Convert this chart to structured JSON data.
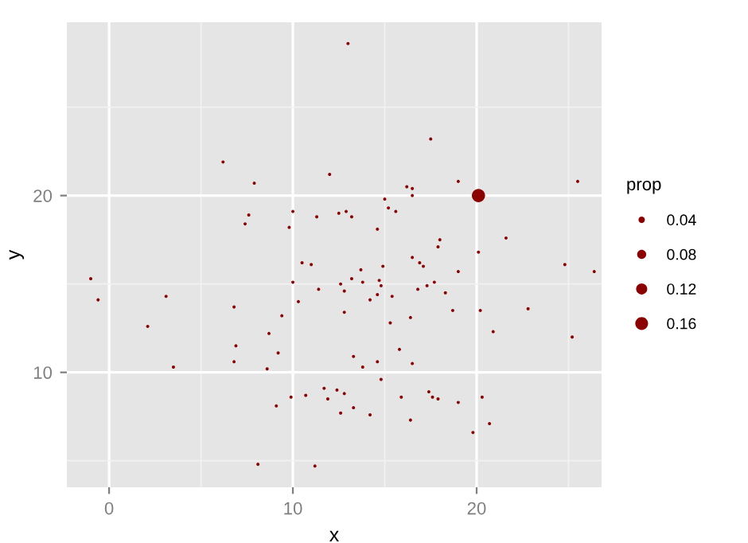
{
  "chart_data": {
    "type": "bubble",
    "xlabel": "x",
    "ylabel": "y",
    "legend_title": "prop",
    "xlim": [
      -2.3,
      26.8
    ],
    "ylim": [
      3.5,
      29.8
    ],
    "xticks": [
      0,
      10,
      20
    ],
    "yticks": [
      10,
      20
    ],
    "grid": true,
    "marker": "circle",
    "size_legend": [
      0.04,
      0.08,
      0.12,
      0.16
    ],
    "series": [
      {
        "color": "#8b0000",
        "x": [
          13.0,
          6.2,
          7.9,
          7.6,
          7.4,
          10.0,
          9.8,
          11.3,
          12.5,
          12.9,
          10.5,
          11.0,
          12.0,
          17.5,
          16.2,
          16.5,
          16.5,
          19.0,
          20.1,
          25.5,
          15.0,
          15.2,
          15.6,
          13.2,
          14.6,
          18.0,
          17.9,
          21.6,
          20.1,
          24.8,
          16.5,
          16.9,
          17.1,
          14.9,
          13.7,
          -1.0,
          -0.6,
          3.1,
          2.1,
          3.5,
          6.8,
          6.9,
          6.8,
          8.6,
          8.7,
          9.2,
          9.4,
          9.1,
          9.9,
          10.7,
          8.1,
          11.2,
          10.0,
          10.3,
          11.4,
          12.6,
          12.8,
          12.8,
          11.7,
          11.9,
          12.4,
          12.8,
          12.6,
          13.2,
          13.8,
          14.7,
          14.8,
          14.6,
          14.2,
          15.4,
          16.8,
          17.3,
          17.7,
          18.3,
          19.0,
          26.4,
          15.3,
          16.4,
          18.7,
          20.2,
          22.8,
          20.9,
          25.2,
          13.3,
          13.8,
          14.6,
          15.8,
          16.5,
          14.8,
          13.3,
          14.2,
          15.9,
          16.4,
          17.4,
          17.6,
          17.9,
          19.0,
          20.3,
          20.7,
          19.8
        ],
        "values": [
          28.6,
          21.9,
          20.7,
          18.9,
          18.4,
          19.1,
          18.2,
          18.8,
          19.0,
          19.1,
          16.2,
          16.1,
          21.2,
          23.2,
          20.5,
          20.4,
          20.0,
          20.8,
          20.0,
          20.8,
          19.8,
          19.3,
          19.1,
          18.8,
          18.1,
          17.5,
          17.1,
          17.6,
          16.8,
          16.1,
          16.5,
          16.2,
          16.0,
          16.0,
          15.8,
          15.3,
          14.1,
          14.3,
          12.6,
          10.3,
          13.7,
          11.5,
          10.6,
          10.2,
          12.2,
          11.1,
          13.2,
          8.1,
          8.6,
          8.7,
          4.8,
          4.7,
          15.1,
          14.0,
          14.7,
          15.0,
          14.6,
          13.4,
          9.1,
          8.5,
          9.0,
          8.8,
          7.7,
          15.3,
          15.1,
          15.2,
          14.9,
          14.4,
          14.1,
          14.3,
          14.7,
          14.9,
          15.1,
          14.5,
          15.7,
          15.7,
          12.8,
          13.1,
          13.5,
          13.5,
          13.6,
          12.3,
          12.0,
          10.9,
          10.3,
          10.6,
          11.3,
          10.5,
          9.6,
          8.0,
          7.6,
          8.6,
          7.3,
          8.9,
          8.6,
          8.5,
          8.3,
          8.6,
          7.1,
          6.6
        ],
        "sizes": [
          0.01,
          0.01,
          0.01,
          0.01,
          0.01,
          0.01,
          0.01,
          0.01,
          0.01,
          0.01,
          0.01,
          0.01,
          0.01,
          0.01,
          0.01,
          0.01,
          0.01,
          0.01,
          0.17,
          0.01,
          0.01,
          0.01,
          0.01,
          0.01,
          0.01,
          0.01,
          0.01,
          0.01,
          0.01,
          0.01,
          0.01,
          0.01,
          0.01,
          0.01,
          0.01,
          0.01,
          0.01,
          0.01,
          0.01,
          0.01,
          0.01,
          0.01,
          0.01,
          0.01,
          0.01,
          0.01,
          0.01,
          0.01,
          0.01,
          0.01,
          0.01,
          0.01,
          0.01,
          0.01,
          0.01,
          0.01,
          0.01,
          0.01,
          0.01,
          0.01,
          0.01,
          0.01,
          0.01,
          0.01,
          0.01,
          0.01,
          0.01,
          0.01,
          0.01,
          0.01,
          0.01,
          0.01,
          0.01,
          0.01,
          0.01,
          0.01,
          0.01,
          0.01,
          0.01,
          0.01,
          0.01,
          0.01,
          0.01,
          0.01,
          0.01,
          0.01,
          0.01,
          0.01,
          0.01,
          0.01,
          0.01,
          0.01,
          0.01,
          0.01,
          0.01,
          0.01,
          0.01,
          0.01,
          0.01,
          0.01
        ]
      }
    ]
  }
}
